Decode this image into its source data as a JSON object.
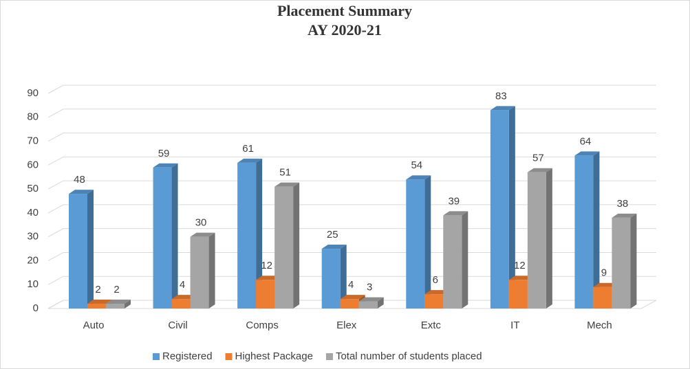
{
  "chart_data": {
    "type": "bar3d",
    "title": "Placement Summary",
    "subtitle": "AY 2020-21",
    "categories": [
      "Auto",
      "Civil",
      "Comps",
      "Elex",
      "Extc",
      "IT",
      "Mech"
    ],
    "series": [
      {
        "name": "Registered",
        "color": "#5b9bd5",
        "values": [
          48,
          59,
          61,
          25,
          54,
          83,
          64
        ]
      },
      {
        "name": "Highest Package",
        "color": "#ed7d31",
        "values": [
          2,
          4,
          12,
          4,
          6,
          12,
          9
        ]
      },
      {
        "name": "Total number of students placed",
        "color": "#a5a5a5",
        "values": [
          2,
          30,
          51,
          3,
          39,
          57,
          38
        ]
      }
    ],
    "ylim": [
      0,
      90
    ],
    "yticks": [
      0,
      10,
      20,
      30,
      40,
      50,
      60,
      70,
      80,
      90
    ],
    "grid": true,
    "legend": "bottom"
  }
}
